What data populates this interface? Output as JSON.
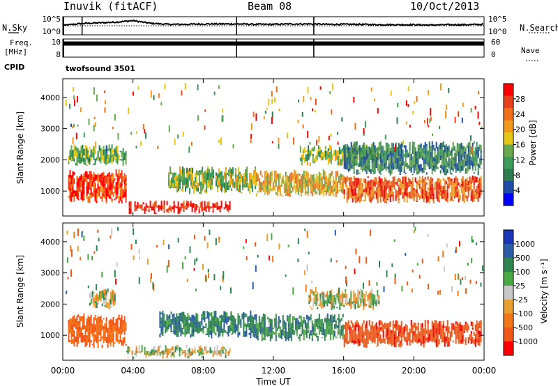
{
  "header": {
    "station": "Inuvik (fitACF)",
    "beam": "Beam 08",
    "date": "10/Oct/2013"
  },
  "left_labels": {
    "nsky": "N.Sky",
    "freq_line1": "Freq.",
    "freq_line2": "[MHz]",
    "cpid": "CPID"
  },
  "right_labels": {
    "nsearch": "N.Search",
    "nave": "Nave"
  },
  "cpid_name": "twofsound 3501",
  "colors": {
    "power_scale": [
      "#0000ff",
      "#1c4ea8",
      "#2e7d4f",
      "#3d9b5c",
      "#6aa84f",
      "#e6c619",
      "#f39a1c",
      "#ef6f1a",
      "#e8401c",
      "#ff0000"
    ],
    "velocity_scale": [
      "#1a35b5",
      "#2a5ca8",
      "#2f8550",
      "#49a942",
      "#c8c8c8",
      "#e8a030",
      "#f07818",
      "#f05818",
      "#ff0000"
    ]
  },
  "chart_data": [
    {
      "type": "line",
      "panel": "noise",
      "title": "",
      "ylabel_left": "N.Sky",
      "ylabel_right": "N.Search",
      "left_ticks": [
        "10^5",
        "10^0"
      ],
      "right_ticks": [
        "10^5",
        "10^0"
      ],
      "series": [
        {
          "name": "N.Sky",
          "x_hours": [
            0,
            1,
            2,
            3,
            4,
            5,
            6,
            7,
            8,
            9,
            10,
            11,
            12,
            13,
            14,
            15,
            16,
            17,
            18,
            19,
            20,
            21,
            22,
            23,
            24
          ],
          "values_log10": [
            2.6,
            3.1,
            3.3,
            3.5,
            3.9,
            3.2,
            2.9,
            2.9,
            3.0,
            3.0,
            3.0,
            2.9,
            2.9,
            3.0,
            3.0,
            2.9,
            2.9,
            2.9,
            2.8,
            2.8,
            2.8,
            2.7,
            2.8,
            2.8,
            2.9
          ]
        },
        {
          "name": "N.Search",
          "x_hours": [
            0,
            24
          ],
          "values_log10": [
            2.5,
            2.5
          ]
        }
      ],
      "ylim": [
        0,
        5
      ]
    },
    {
      "type": "line",
      "panel": "frequency",
      "ylabel_left": "Freq. [MHz]",
      "ylabel_right": "Nave",
      "left_ticks": [
        "10",
        "8"
      ],
      "right_ticks": [
        "60",
        "0"
      ],
      "series": [
        {
          "name": "Freq.",
          "x_hours": [
            0,
            24
          ],
          "values": [
            9.5,
            9.5
          ]
        }
      ]
    },
    {
      "type": "heatmap",
      "panel": "power",
      "ylabel": "Slant Range [km]",
      "yticks": [
        1000,
        2000,
        3000,
        4000
      ],
      "ylim": [
        200,
        4600
      ],
      "colorbar_label": "Power [dB]",
      "colorbar_ticks": [
        "4",
        "8",
        "12",
        "16",
        "20",
        "24",
        "28"
      ],
      "colorbar_range": [
        0,
        30
      ],
      "bands": [
        {
          "x": [
            0.3,
            3.6
          ],
          "r": [
            600,
            1700
          ],
          "value": 26
        },
        {
          "x": [
            0.3,
            3.6
          ],
          "r": [
            1800,
            2500
          ],
          "value": 12
        },
        {
          "x": [
            3.6,
            9.5
          ],
          "r": [
            250,
            700
          ],
          "value": 28
        },
        {
          "x": [
            6.0,
            11.0
          ],
          "r": [
            900,
            1800
          ],
          "value": 14
        },
        {
          "x": [
            11.0,
            16.0
          ],
          "r": [
            800,
            1700
          ],
          "value": 18
        },
        {
          "x": [
            13.5,
            18.0
          ],
          "r": [
            1800,
            2500
          ],
          "value": 14
        },
        {
          "x": [
            16.0,
            23.8
          ],
          "r": [
            600,
            1500
          ],
          "value": 24
        },
        {
          "x": [
            16.0,
            23.8
          ],
          "r": [
            1500,
            2600
          ],
          "value": 9
        }
      ]
    },
    {
      "type": "heatmap",
      "panel": "velocity",
      "ylabel": "Slant Range [km]",
      "yticks": [
        1000,
        2000,
        3000,
        4000
      ],
      "ylim": [
        200,
        4600
      ],
      "xlabel": "Time UT",
      "xticks": [
        "00:00",
        "04:00",
        "08:00",
        "12:00",
        "16:00",
        "20:00",
        "00:00"
      ],
      "colorbar_label": "Velocity [m s⁻¹]",
      "colorbar_ticks": [
        "1000",
        "500",
        "100",
        "25",
        "-25",
        "-100",
        "-500",
        "-1000"
      ],
      "bands": [
        {
          "x": [
            0.3,
            3.6
          ],
          "r": [
            600,
            1700
          ],
          "value": -300
        },
        {
          "x": [
            1.5,
            3.0
          ],
          "r": [
            1800,
            2500
          ],
          "value": 0
        },
        {
          "x": [
            3.6,
            9.5
          ],
          "r": [
            250,
            700
          ],
          "value": 0
        },
        {
          "x": [
            5.5,
            11.0
          ],
          "r": [
            900,
            1800
          ],
          "value": 200
        },
        {
          "x": [
            11.0,
            16.0
          ],
          "r": [
            800,
            1700
          ],
          "value": 150
        },
        {
          "x": [
            14.0,
            18.0
          ],
          "r": [
            1800,
            2500
          ],
          "value": 0
        },
        {
          "x": [
            16.0,
            23.8
          ],
          "r": [
            600,
            1500
          ],
          "value": -400
        }
      ]
    }
  ]
}
